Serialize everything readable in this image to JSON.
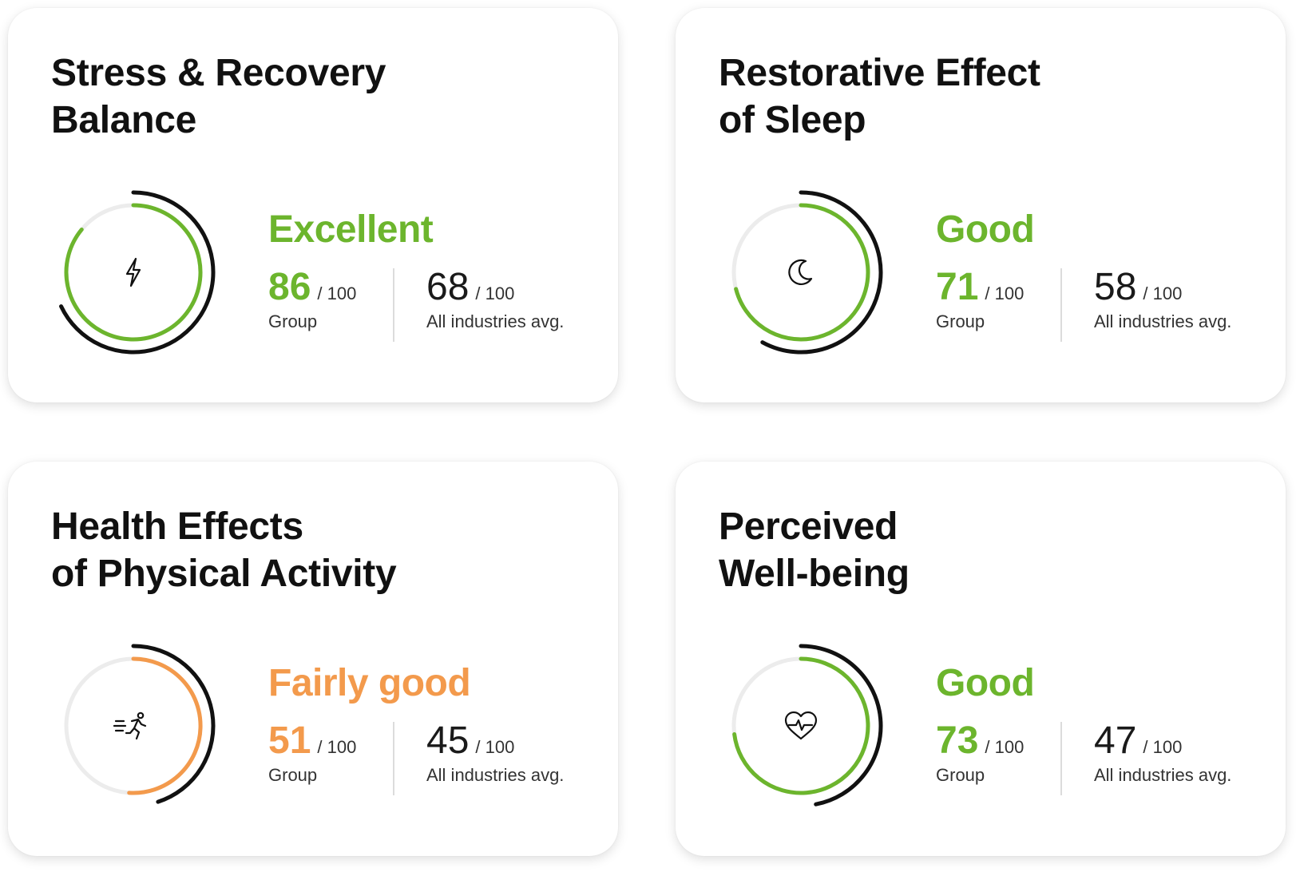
{
  "colors": {
    "green": "#6cb52d",
    "orange": "#f39a4c",
    "track": "#ececec",
    "outer": "#111111"
  },
  "cards": [
    {
      "title_lines": [
        "Stress & Recovery",
        "Balance"
      ],
      "rating": "Excellent",
      "rating_color": "#6cb52d",
      "icon": "lightning-icon",
      "group_score": "86",
      "group_score_value": 86,
      "denominator": "/ 100",
      "group_label": "Group",
      "avg_score": "68",
      "avg_score_value": 68,
      "avg_label": "All industries avg."
    },
    {
      "title_lines": [
        "Restorative Effect",
        "of Sleep"
      ],
      "rating": "Good",
      "rating_color": "#6cb52d",
      "icon": "moon-icon",
      "group_score": "71",
      "group_score_value": 71,
      "denominator": "/ 100",
      "group_label": "Group",
      "avg_score": "58",
      "avg_score_value": 58,
      "avg_label": "All industries avg."
    },
    {
      "title_lines": [
        "Health Effects",
        "of Physical Activity"
      ],
      "rating": "Fairly good",
      "rating_color": "#f39a4c",
      "icon": "running-person-icon",
      "group_score": "51",
      "group_score_value": 51,
      "denominator": "/ 100",
      "group_label": "Group",
      "avg_score": "45",
      "avg_score_value": 45,
      "avg_label": "All industries avg."
    },
    {
      "title_lines": [
        "Perceived",
        "Well-being"
      ],
      "rating": "Good",
      "rating_color": "#6cb52d",
      "icon": "heart-pulse-icon",
      "group_score": "73",
      "group_score_value": 73,
      "denominator": "/ 100",
      "group_label": "Group",
      "avg_score": "47",
      "avg_score_value": 47,
      "avg_label": "All industries avg."
    }
  ]
}
